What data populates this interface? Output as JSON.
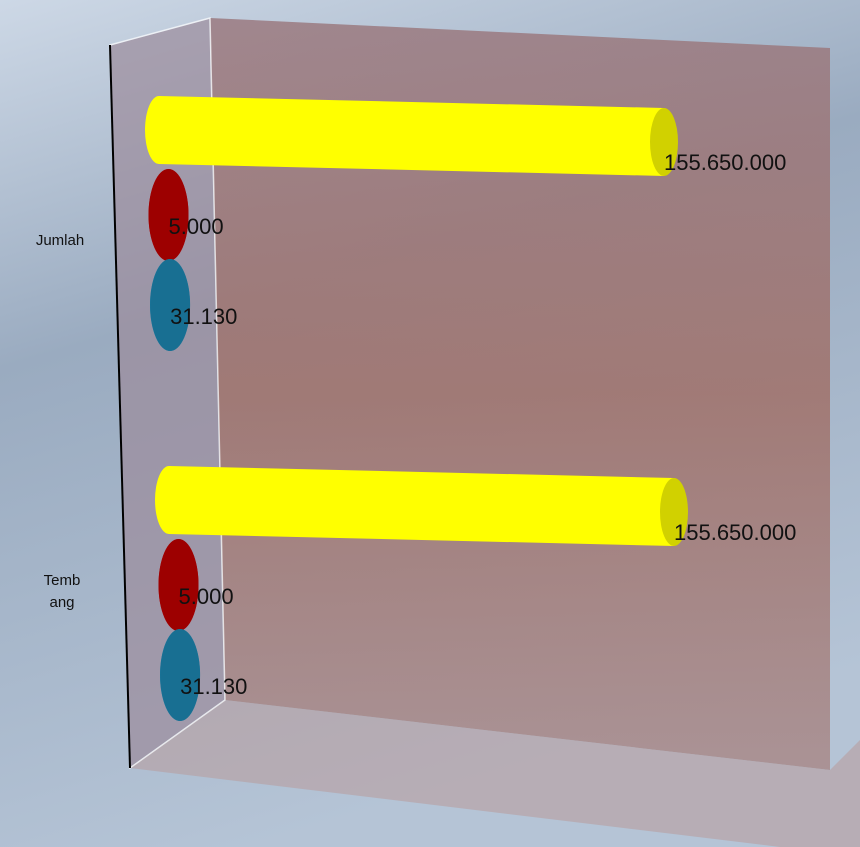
{
  "chart_data": {
    "type": "bar3d-cylinder",
    "categories": [
      "Jumlah",
      "Tembang"
    ],
    "series": [
      {
        "color": "#ffff00",
        "values": [
          155650000,
          155650000
        ],
        "value_labels": [
          "155.650.000",
          "155.650.000"
        ]
      },
      {
        "color": "#c00000",
        "values": [
          5000,
          5000
        ],
        "value_labels": [
          "5.000",
          "5.000"
        ]
      },
      {
        "color": "#1d87b2",
        "values": [
          31130,
          31130
        ],
        "value_labels": [
          "31.130",
          "31.130"
        ]
      }
    ]
  }
}
